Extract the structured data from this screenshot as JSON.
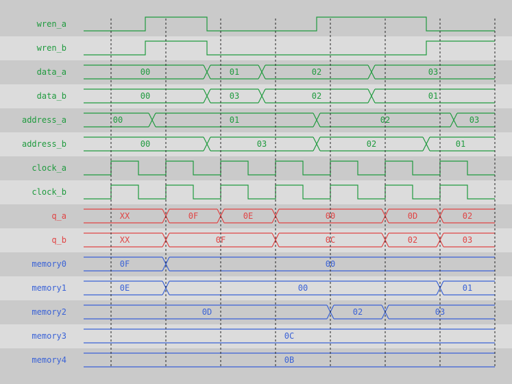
{
  "colors": {
    "band_dark": "#cacaca",
    "band_light": "#dcdcdc",
    "input": "#1f9a3e",
    "output": "#e04444",
    "memory": "#3a62d6",
    "cursor": "#222222"
  },
  "time_range": [
    0,
    60
  ],
  "cursors": [
    4,
    12,
    20,
    28,
    36,
    44,
    52,
    60
  ],
  "signals": [
    {
      "name": "wren_a",
      "group": "input",
      "type": "bit",
      "initial": 0,
      "edges": [
        9,
        18,
        34,
        50
      ]
    },
    {
      "name": "wren_b",
      "group": "input",
      "type": "bit",
      "initial": 0,
      "edges": [
        9,
        18,
        50
      ]
    },
    {
      "name": "data_a",
      "group": "input",
      "type": "bus",
      "segments": [
        {
          "t": 0,
          "v": "00"
        },
        {
          "t": 18,
          "v": "01"
        },
        {
          "t": 26,
          "v": "02"
        },
        {
          "t": 42,
          "v": "03"
        }
      ]
    },
    {
      "name": "data_b",
      "group": "input",
      "type": "bus",
      "segments": [
        {
          "t": 0,
          "v": "00"
        },
        {
          "t": 18,
          "v": "03"
        },
        {
          "t": 26,
          "v": "02"
        },
        {
          "t": 42,
          "v": "01"
        }
      ]
    },
    {
      "name": "address_a",
      "group": "input",
      "type": "bus",
      "segments": [
        {
          "t": 0,
          "v": "00"
        },
        {
          "t": 10,
          "v": "01"
        },
        {
          "t": 34,
          "v": "02"
        },
        {
          "t": 54,
          "v": "03"
        }
      ]
    },
    {
      "name": "address_b",
      "group": "input",
      "type": "bus",
      "segments": [
        {
          "t": 0,
          "v": "00"
        },
        {
          "t": 18,
          "v": "03"
        },
        {
          "t": 34,
          "v": "02"
        },
        {
          "t": 50,
          "v": "01"
        }
      ]
    },
    {
      "name": "clock_a",
      "group": "input",
      "type": "bit",
      "initial": 0,
      "edges": [
        4,
        8,
        12,
        16,
        20,
        24,
        28,
        32,
        36,
        40,
        44,
        48,
        52,
        56
      ]
    },
    {
      "name": "clock_b",
      "group": "input",
      "type": "bit",
      "initial": 0,
      "edges": [
        4,
        8,
        12,
        16,
        20,
        24,
        28,
        32,
        36,
        40,
        44,
        48,
        52,
        56
      ]
    },
    {
      "name": "q_a",
      "group": "output",
      "type": "bus",
      "segments": [
        {
          "t": 0,
          "v": "XX"
        },
        {
          "t": 12,
          "v": "0F"
        },
        {
          "t": 20,
          "v": "0E"
        },
        {
          "t": 28,
          "v": "00"
        },
        {
          "t": 44,
          "v": "0D"
        },
        {
          "t": 52,
          "v": "02"
        }
      ]
    },
    {
      "name": "q_b",
      "group": "output",
      "type": "bus",
      "segments": [
        {
          "t": 0,
          "v": "XX"
        },
        {
          "t": 12,
          "v": "0F"
        },
        {
          "t": 28,
          "v": "0C"
        },
        {
          "t": 44,
          "v": "02"
        },
        {
          "t": 52,
          "v": "03"
        }
      ]
    },
    {
      "name": "memory0",
      "group": "memory",
      "type": "bus",
      "segments": [
        {
          "t": 0,
          "v": "0F"
        },
        {
          "t": 12,
          "v": "00"
        }
      ]
    },
    {
      "name": "memory1",
      "group": "memory",
      "type": "bus",
      "segments": [
        {
          "t": 0,
          "v": "0E"
        },
        {
          "t": 12,
          "v": "00"
        },
        {
          "t": 52,
          "v": "01"
        }
      ]
    },
    {
      "name": "memory2",
      "group": "memory",
      "type": "bus",
      "segments": [
        {
          "t": 0,
          "v": "0D"
        },
        {
          "t": 36,
          "v": "02"
        },
        {
          "t": 44,
          "v": "03"
        }
      ]
    },
    {
      "name": "memory3",
      "group": "memory",
      "type": "bus",
      "segments": [
        {
          "t": 0,
          "v": "0C"
        }
      ]
    },
    {
      "name": "memory4",
      "group": "memory",
      "type": "bus",
      "segments": [
        {
          "t": 0,
          "v": "0B"
        }
      ]
    }
  ]
}
